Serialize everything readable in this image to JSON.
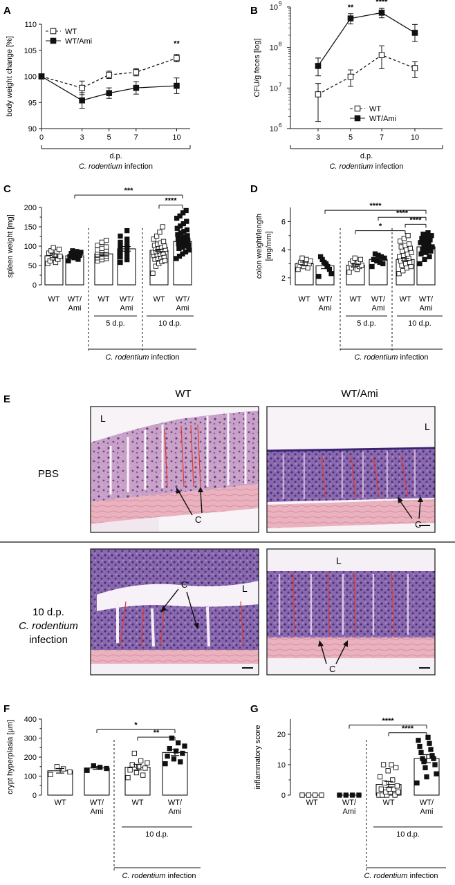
{
  "panel_letters": [
    "A",
    "B",
    "C",
    "D",
    "E",
    "F",
    "G"
  ],
  "common": {
    "infection_prefix": "C. rodentium",
    "infection_suffix": " infection",
    "dp": "d.p.",
    "wt": "WT",
    "wtami_1": "WT/",
    "wtami_2": "Ami",
    "dp5": "5 d.p.",
    "dp10": "10 d.p."
  },
  "panelE": {
    "col_wt": "WT",
    "col_wtami": "WT/Ami",
    "row_pbs": "PBS",
    "row_inf_1": "10 d.p.",
    "row_inf_2": "C. rodentium",
    "row_inf_3": "infection",
    "marker_L": "L",
    "marker_C": "C"
  },
  "chart_data": [
    {
      "id": "A",
      "type": "line",
      "ylabel": "body weight change [%]",
      "xlabel": "d.p.",
      "x": [
        0,
        3,
        5,
        7,
        10
      ],
      "xlim": [
        0,
        11
      ],
      "ylim": [
        90,
        110
      ],
      "yticks": [
        90,
        95,
        100,
        105,
        110
      ],
      "series": [
        {
          "name": "WT",
          "values": [
            100,
            97.8,
            100.3,
            100.8,
            103.5
          ],
          "err": [
            0,
            1.3,
            0.7,
            0.7,
            0.7
          ],
          "marker": "open-square",
          "line": "dashed"
        },
        {
          "name": "WT/Ami",
          "values": [
            100,
            95.4,
            96.8,
            97.8,
            98.2
          ],
          "err": [
            0,
            1.5,
            1.0,
            1.2,
            1.5
          ],
          "marker": "filled-square",
          "line": "solid"
        }
      ],
      "annotations": [
        {
          "x": 10,
          "text": "**"
        }
      ],
      "legend": "top-left"
    },
    {
      "id": "B",
      "type": "line",
      "ylabel": "CFU/g feces [log]",
      "xlabel": "d.p.",
      "yscale": "log",
      "x": [
        3,
        5,
        7,
        10
      ],
      "ylim": [
        1000000,
        1000000000
      ],
      "ytick_labels": [
        "10",
        "10",
        "10",
        "10"
      ],
      "ytick_exps": [
        "6",
        "7",
        "8",
        "9"
      ],
      "series": [
        {
          "name": "WT",
          "values": [
            7000000,
            19000000,
            65000000,
            31000000
          ],
          "err_lo": [
            1500000,
            11000000,
            30000000,
            18000000
          ],
          "err_hi": [
            13000000,
            28000000,
            110000000,
            45000000
          ],
          "marker": "open-square",
          "line": "dashed"
        },
        {
          "name": "WT/Ami",
          "values": [
            35000000,
            520000000,
            720000000,
            230000000
          ],
          "err_lo": [
            20000000,
            380000000,
            540000000,
            140000000
          ],
          "err_hi": [
            55000000,
            680000000,
            920000000,
            370000000
          ],
          "marker": "filled-square",
          "line": "solid"
        }
      ],
      "annotations": [
        {
          "x": 5,
          "text": "**"
        },
        {
          "x": 7,
          "text": "****"
        }
      ],
      "legend": "bottom-right"
    },
    {
      "id": "C",
      "type": "bar",
      "ylabel": "spleen weight [mg]",
      "ylim": [
        0,
        200
      ],
      "yticks": [
        0,
        50,
        100,
        150,
        200
      ],
      "groups": [
        {
          "label": "WT",
          "mean": 75,
          "sem": 5,
          "fill": "open",
          "points": [
            55,
            58,
            62,
            66,
            70,
            74,
            78,
            82,
            85,
            88,
            92,
            96
          ]
        },
        {
          "label": "WT/Ami",
          "mean": 75,
          "sem": 4,
          "fill": "filled",
          "points": [
            62,
            66,
            70,
            73,
            76,
            78,
            81,
            84,
            86,
            88
          ]
        },
        {
          "label": "WT",
          "mean": 80,
          "sem": 3,
          "fill": "open",
          "points": [
            62,
            65,
            68,
            70,
            72,
            74,
            76,
            78,
            79,
            80,
            81,
            82,
            84,
            86,
            88,
            90,
            94,
            98,
            102,
            110,
            115
          ]
        },
        {
          "label": "WT/Ami",
          "mean": 93,
          "sem": 6,
          "fill": "filled",
          "points": [
            58,
            65,
            72,
            78,
            84,
            90,
            95,
            98,
            102,
            106,
            110,
            118,
            126,
            140
          ]
        },
        {
          "label": "WT",
          "mean": 89,
          "sem": 3,
          "fill": "open",
          "points": [
            30,
            48,
            55,
            60,
            63,
            66,
            69,
            72,
            74,
            76,
            78,
            80,
            82,
            84,
            86,
            88,
            90,
            92,
            94,
            96,
            98,
            100,
            102,
            105,
            108,
            112,
            118,
            126,
            136,
            150
          ]
        },
        {
          "label": "WT/Ami",
          "mean": 112,
          "sem": 4,
          "fill": "filled",
          "points": [
            68,
            74,
            80,
            85,
            90,
            94,
            97,
            100,
            103,
            106,
            109,
            112,
            115,
            118,
            121,
            124,
            127,
            130,
            134,
            138,
            142,
            146,
            152,
            158,
            164,
            172,
            178,
            186,
            192
          ]
        }
      ],
      "brackets": [
        {
          "from": 1,
          "to": 5,
          "text": "***",
          "y": 232
        },
        {
          "from": 4,
          "to": 5,
          "text": "****",
          "y": 206
        }
      ]
    },
    {
      "id": "D",
      "type": "bar",
      "ylabel": "colon weight/length [mg/mm]",
      "ylim": [
        1.5,
        7
      ],
      "yticks": [
        2,
        4,
        6
      ],
      "groups": [
        {
          "label": "WT",
          "mean": 3.0,
          "sem": 0.12,
          "fill": "open",
          "points": [
            2.6,
            2.7,
            2.8,
            2.9,
            3.0,
            3.0,
            3.1,
            3.2,
            3.3,
            3.4
          ]
        },
        {
          "label": "WT/Ami",
          "mean": 2.85,
          "sem": 0.2,
          "fill": "filled",
          "points": [
            2.1,
            2.3,
            2.6,
            2.8,
            3.0,
            3.1,
            3.3,
            3.5
          ]
        },
        {
          "label": "WT",
          "mean": 2.9,
          "sem": 0.08,
          "fill": "open",
          "points": [
            2.4,
            2.6,
            2.7,
            2.8,
            2.9,
            2.9,
            3.0,
            3.0,
            3.1,
            3.2,
            3.3,
            3.4
          ]
        },
        {
          "label": "WT/Ami",
          "mean": 3.3,
          "sem": 0.1,
          "fill": "filled",
          "points": [
            2.8,
            3.0,
            3.1,
            3.2,
            3.3,
            3.4,
            3.5,
            3.6,
            3.7
          ]
        },
        {
          "label": "WT",
          "mean": 3.3,
          "sem": 0.08,
          "fill": "open",
          "points": [
            2.3,
            2.5,
            2.7,
            2.8,
            2.9,
            3.0,
            3.1,
            3.2,
            3.3,
            3.4,
            3.5,
            3.6,
            3.7,
            3.8,
            3.9,
            4.0,
            4.1,
            4.2,
            4.3,
            4.4,
            4.6,
            4.8,
            5.0
          ]
        },
        {
          "label": "WT/Ami",
          "mean": 4.2,
          "sem": 0.08,
          "fill": "filled",
          "points": [
            3.0,
            3.3,
            3.5,
            3.7,
            3.8,
            3.9,
            4.0,
            4.1,
            4.2,
            4.3,
            4.4,
            4.5,
            4.6,
            4.7,
            4.8,
            4.9,
            5.0,
            5.1,
            5.2
          ]
        }
      ],
      "brackets": [
        {
          "from": 1,
          "to": 5,
          "text": "****",
          "y": 6.8
        },
        {
          "from": 3,
          "to": 5,
          "text": "****",
          "y": 6.3
        },
        {
          "from": 4,
          "to": 5,
          "text": "****",
          "y": 5.8
        },
        {
          "from": 2,
          "to": 4,
          "text": "*",
          "y": 5.35
        }
      ]
    },
    {
      "id": "F",
      "type": "bar",
      "ylabel": "crypt hyperplasia [µm]",
      "ylim": [
        0,
        400
      ],
      "yticks": [
        0,
        100,
        200,
        300,
        400
      ],
      "groups": [
        {
          "label": "WT",
          "mean": 128,
          "sem": 12,
          "fill": "open",
          "points": [
            108,
            122,
            138,
            150
          ]
        },
        {
          "label": "WT/Ami",
          "mean": 143,
          "sem": 7,
          "fill": "filled",
          "points": [
            130,
            140,
            146,
            154
          ]
        },
        {
          "label": "WT",
          "mean": 147,
          "sem": 15,
          "fill": "open",
          "points": [
            92,
            105,
            118,
            132,
            142,
            150,
            160,
            170,
            180,
            220
          ]
        },
        {
          "label": "WT/Ami",
          "mean": 224,
          "sem": 16,
          "fill": "filled",
          "points": [
            165,
            175,
            190,
            205,
            220,
            232,
            245,
            258,
            275,
            300
          ]
        }
      ],
      "brackets": [
        {
          "from": 1,
          "to": 3,
          "text": "*",
          "y": 345
        },
        {
          "from": 2,
          "to": 3,
          "text": "**",
          "y": 305
        }
      ]
    },
    {
      "id": "G",
      "type": "bar",
      "ylabel": "inflammatory score",
      "ylim": [
        0,
        25
      ],
      "yticks": [
        0,
        10,
        20
      ],
      "groups": [
        {
          "label": "WT",
          "mean": 0,
          "sem": 0,
          "fill": "open",
          "points": [
            0,
            0,
            0,
            0
          ]
        },
        {
          "label": "WT/Ami",
          "mean": 0,
          "sem": 0,
          "fill": "filled",
          "points": [
            0,
            0,
            0,
            0
          ]
        },
        {
          "label": "WT",
          "mean": 3.5,
          "sem": 1,
          "fill": "open",
          "points": [
            0,
            0,
            0,
            0,
            1,
            1,
            1,
            2,
            2,
            2,
            3,
            4,
            5,
            6,
            8,
            9,
            10,
            10
          ]
        },
        {
          "label": "WT/Ami",
          "mean": 12,
          "sem": 1.3,
          "fill": "filled",
          "points": [
            4,
            6,
            7,
            9,
            10,
            11,
            12,
            12,
            13,
            14,
            15,
            16,
            17,
            18,
            19
          ]
        }
      ],
      "brackets": [
        {
          "from": 1,
          "to": 3,
          "text": "****",
          "y": 23
        },
        {
          "from": 2,
          "to": 3,
          "text": "****",
          "y": 20.5
        }
      ]
    }
  ]
}
